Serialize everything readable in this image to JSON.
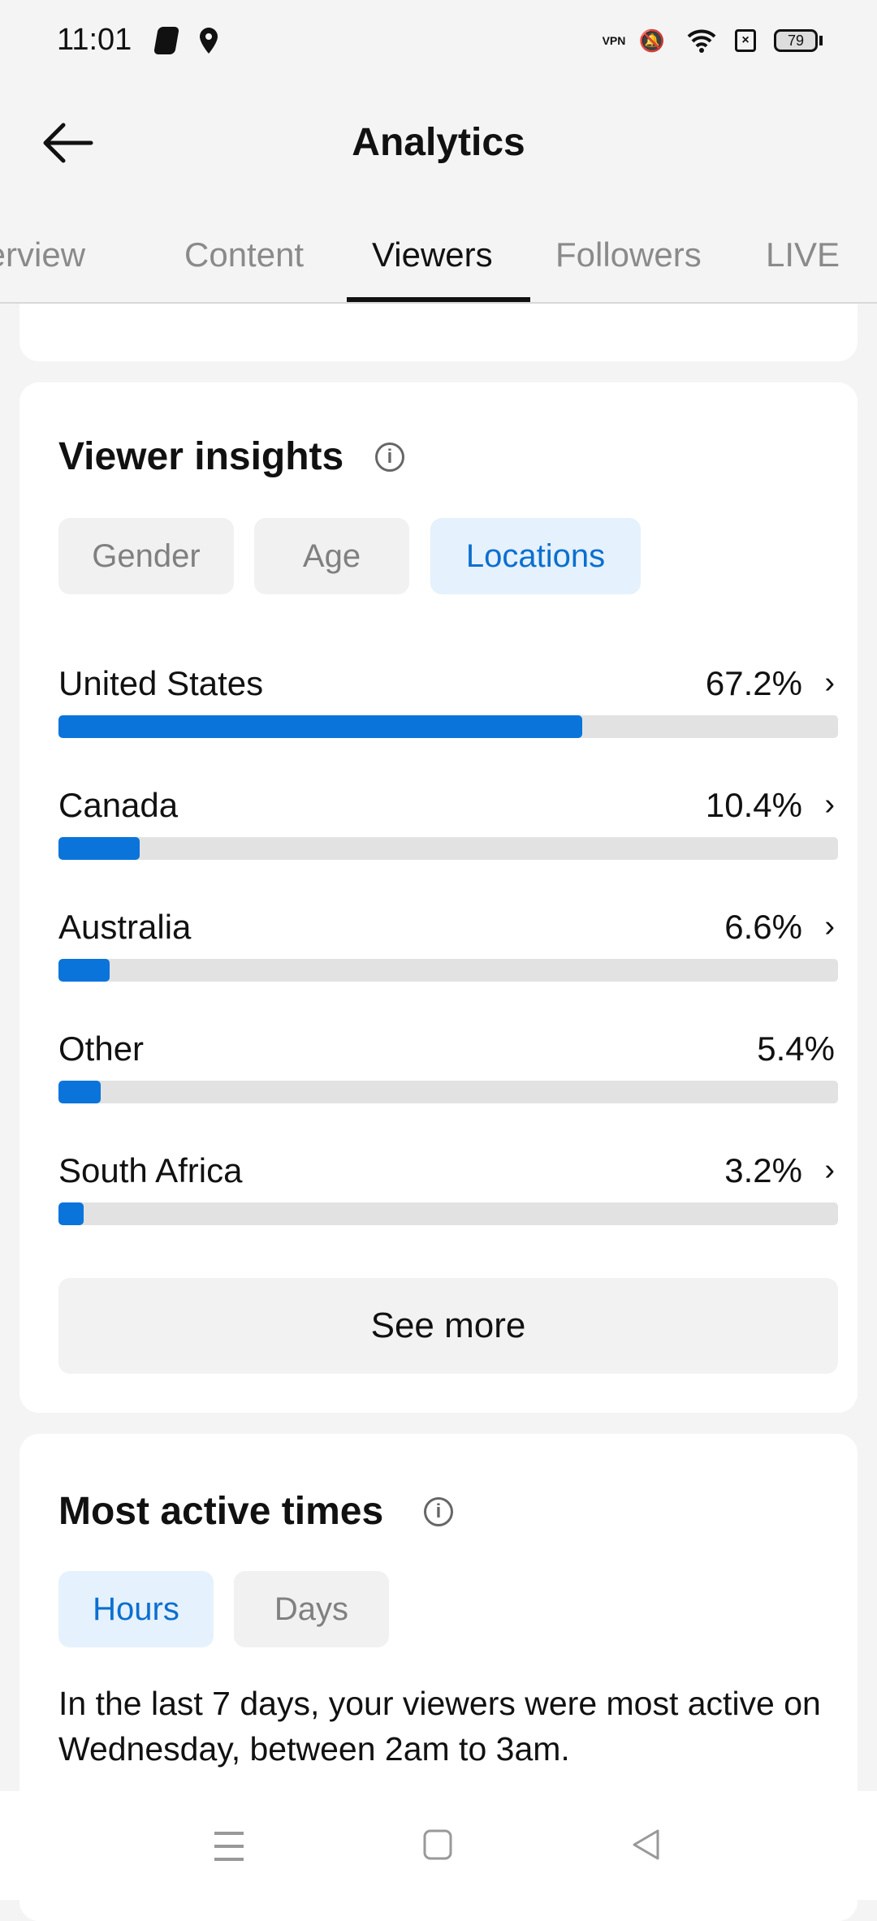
{
  "status_bar": {
    "time": "11:01",
    "battery": "79",
    "icons": [
      "shazam-icon",
      "location-icon",
      "vpn-icon",
      "bell-muted-icon",
      "wifi-icon",
      "sim-x-icon",
      "battery-icon"
    ]
  },
  "header": {
    "title": "Analytics",
    "back_icon": "arrow-left-icon"
  },
  "tabs": [
    {
      "label": "Overview"
    },
    {
      "label": "Content"
    },
    {
      "label": "Viewers",
      "active": true
    },
    {
      "label": "Followers"
    },
    {
      "label": "LIVE"
    }
  ],
  "viewer_insights": {
    "title": "Viewer insights",
    "chips": [
      {
        "label": "Gender"
      },
      {
        "label": "Age"
      },
      {
        "label": "Locations",
        "active": true
      }
    ],
    "locations": [
      {
        "name": "United States",
        "value": "67.2%",
        "percent": 67.2,
        "chevron": true
      },
      {
        "name": "Canada",
        "value": "10.4%",
        "percent": 10.4,
        "chevron": true
      },
      {
        "name": "Australia",
        "value": "6.6%",
        "percent": 6.6,
        "chevron": true
      },
      {
        "name": "Other",
        "value": "5.4%",
        "percent": 5.4,
        "chevron": false
      },
      {
        "name": "South Africa",
        "value": "3.2%",
        "percent": 3.2,
        "chevron": true
      }
    ],
    "see_more": "See more"
  },
  "most_active": {
    "title": "Most active times",
    "chips": [
      {
        "label": "Hours",
        "active": true
      },
      {
        "label": "Days"
      }
    ],
    "description": "In the last 7 days, your viewers were most active on Wednesday, between 2am to 3am."
  },
  "colors": {
    "accent": "#0a74da",
    "track": "#e2e2e2",
    "chip_active_bg": "#e5f1fc"
  }
}
